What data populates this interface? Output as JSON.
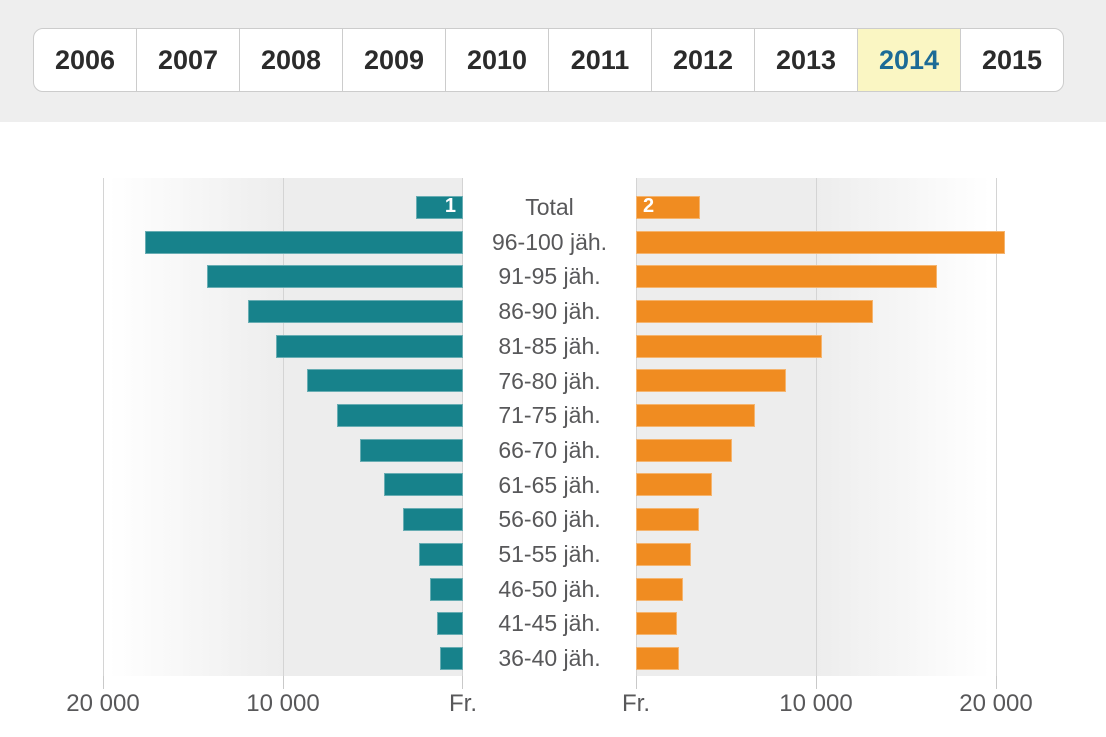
{
  "tabs": {
    "years": [
      "2006",
      "2007",
      "2008",
      "2009",
      "2010",
      "2011",
      "2012",
      "2013",
      "2014",
      "2015"
    ],
    "active": "2014"
  },
  "chart_data": {
    "type": "bar",
    "variant": "bidirectional-pyramid",
    "title": "",
    "categories": [
      "Total",
      "96-100 jäh.",
      "91-95 jäh.",
      "86-90 jäh.",
      "81-85 jäh.",
      "76-80 jäh.",
      "71-75 jäh.",
      "66-70 jäh.",
      "61-65 jäh.",
      "56-60 jäh.",
      "51-55 jäh.",
      "46-50 jäh.",
      "41-45 jäh.",
      "36-40 jäh."
    ],
    "series": [
      {
        "name": "1",
        "side": "left",
        "color": "#17828B",
        "values": [
          2600,
          17650,
          14200,
          11950,
          10400,
          8650,
          7000,
          5700,
          4400,
          3350,
          2450,
          1850,
          1450,
          1250
        ]
      },
      {
        "name": "2",
        "side": "right",
        "color": "#F08C21",
        "values": [
          3550,
          20500,
          16700,
          13150,
          10350,
          8350,
          6600,
          5350,
          4200,
          3500,
          3050,
          2600,
          2250,
          2400
        ]
      }
    ],
    "x_axis": {
      "unit_label": "Fr.",
      "left_ticks": [
        {
          "value": 20000,
          "label": "20 000"
        },
        {
          "value": 10000,
          "label": "10 000"
        },
        {
          "value": 0,
          "label": "Fr."
        }
      ],
      "right_ticks": [
        {
          "value": 0,
          "label": "Fr."
        },
        {
          "value": 10000,
          "label": "10 000"
        },
        {
          "value": 20000,
          "label": "20 000"
        }
      ],
      "max": 20000,
      "grid": true
    },
    "legend": {
      "position": "inline-total-bars",
      "entries": [
        "1",
        "2"
      ]
    }
  },
  "colors": {
    "series1": "#17828B",
    "series2": "#F08C21",
    "active_tab_bg": "#FAF6C3",
    "active_tab_text": "#1C6B96",
    "tab_strip_bg": "#EEEEEE",
    "tab_border": "#CCCCCC",
    "axis_text": "#58585A",
    "band_gray": "#EDEDED",
    "grid_line": "#D4D4D4"
  }
}
